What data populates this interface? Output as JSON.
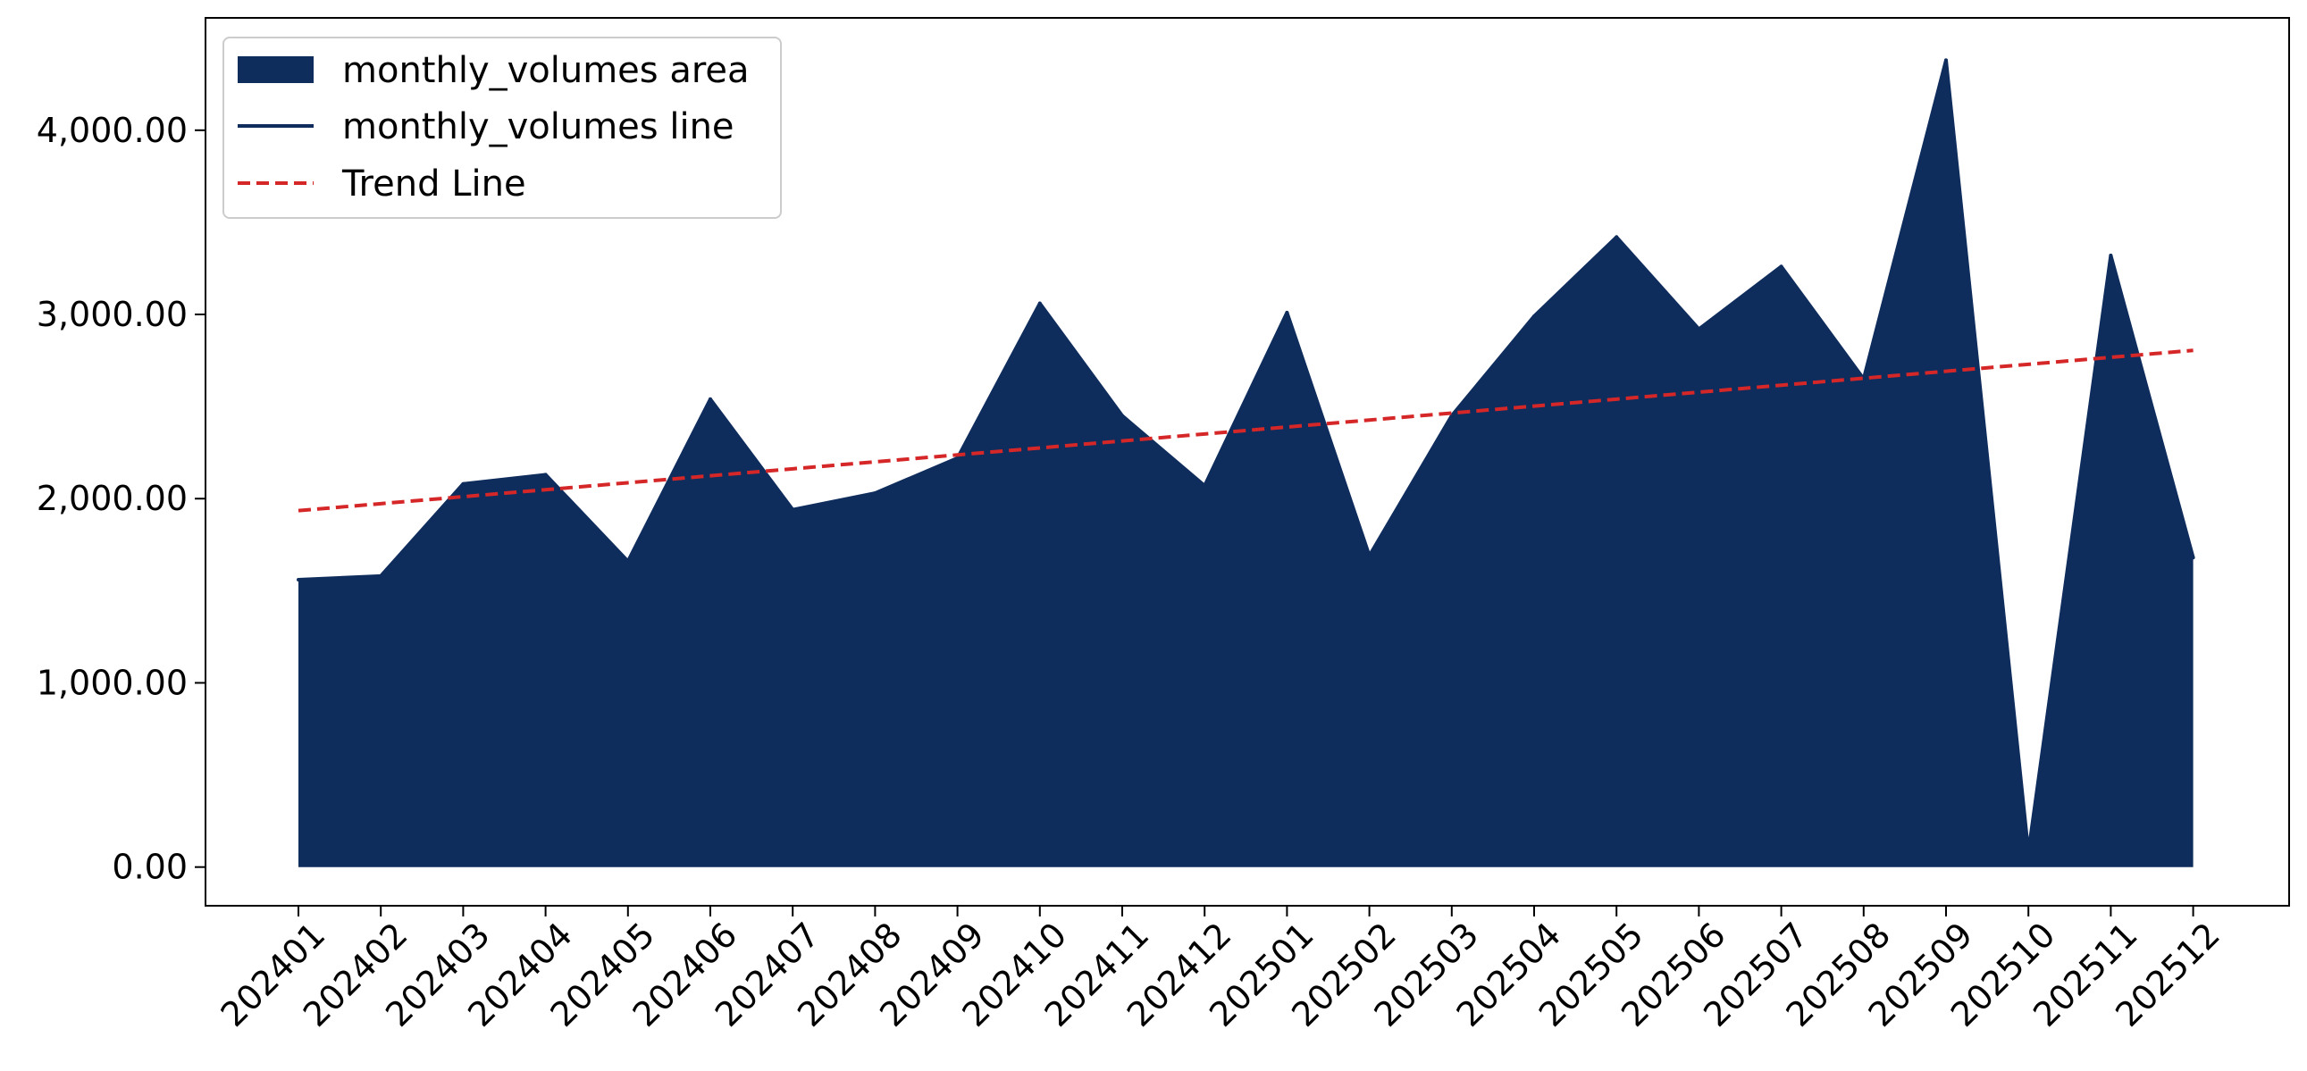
{
  "chart_data": {
    "type": "area",
    "title": "",
    "xlabel": "",
    "ylabel": "",
    "categories": [
      "202401",
      "202402",
      "202403",
      "202404",
      "202405",
      "202406",
      "202407",
      "202408",
      "202409",
      "202410",
      "202411",
      "202412",
      "202501",
      "202502",
      "202503",
      "202504",
      "202505",
      "202506",
      "202507",
      "202508",
      "202509",
      "202510",
      "202511",
      "202512"
    ],
    "series": [
      {
        "name": "monthly_volumes area",
        "kind": "area",
        "color": "#0e2c5c",
        "values": [
          1560,
          1580,
          2080,
          2130,
          1660,
          2540,
          1940,
          2030,
          2220,
          3060,
          2450,
          2070,
          3010,
          1690,
          2450,
          2990,
          3420,
          2920,
          3260,
          2650,
          4380,
          80,
          3320,
          1680
        ]
      },
      {
        "name": "monthly_volumes line",
        "kind": "line",
        "color": "#0e2c5c",
        "values": [
          1560,
          1580,
          2080,
          2130,
          1660,
          2540,
          1940,
          2030,
          2220,
          3060,
          2450,
          2070,
          3010,
          1690,
          2450,
          2990,
          3420,
          2920,
          3260,
          2650,
          4380,
          80,
          3320,
          1680
        ]
      },
      {
        "name": "Trend Line",
        "kind": "trend",
        "color": "#d62728",
        "style": "dashed",
        "values": [
          1935,
          1972.8,
          2010.7,
          2048.5,
          2086.3,
          2124.1,
          2162,
          2199.8,
          2237.6,
          2275.4,
          2313.3,
          2351.1,
          2388.9,
          2426.7,
          2464.6,
          2502.4,
          2540.2,
          2578,
          2615.9,
          2653.7,
          2691.5,
          2729.3,
          2767.2,
          2805
        ]
      }
    ],
    "y_ticks": [
      "0.00",
      "1,000.00",
      "2,000.00",
      "3,000.00",
      "4,000.00"
    ],
    "y_tick_values": [
      0,
      1000,
      2000,
      3000,
      4000
    ],
    "ylim": [
      -210,
      4610
    ],
    "grid": false,
    "legend_position": "top-left"
  }
}
